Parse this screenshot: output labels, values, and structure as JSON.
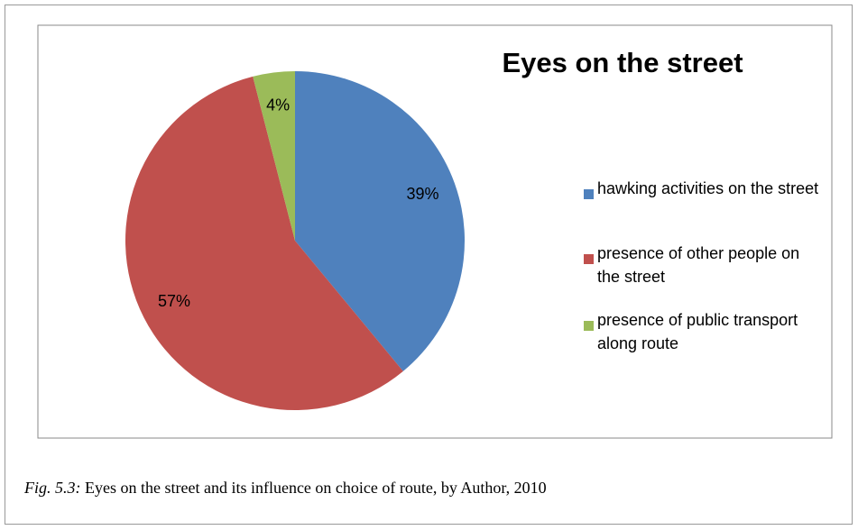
{
  "chart_data": {
    "type": "pie",
    "title": "Eyes on the street",
    "categories": [
      "hawking activities on the street",
      "presence of other people on the street",
      "presence of public transport along route"
    ],
    "values": [
      39,
      57,
      4
    ],
    "value_labels": [
      "39%",
      "57%",
      "4%"
    ],
    "colors": [
      "#4f81bd",
      "#c0504d",
      "#9bbb59"
    ],
    "legend": "right"
  },
  "caption": {
    "label": "Fig. 5.3:",
    "text": "Eyes on the street and its influence on choice of route, by Author, 2010"
  }
}
